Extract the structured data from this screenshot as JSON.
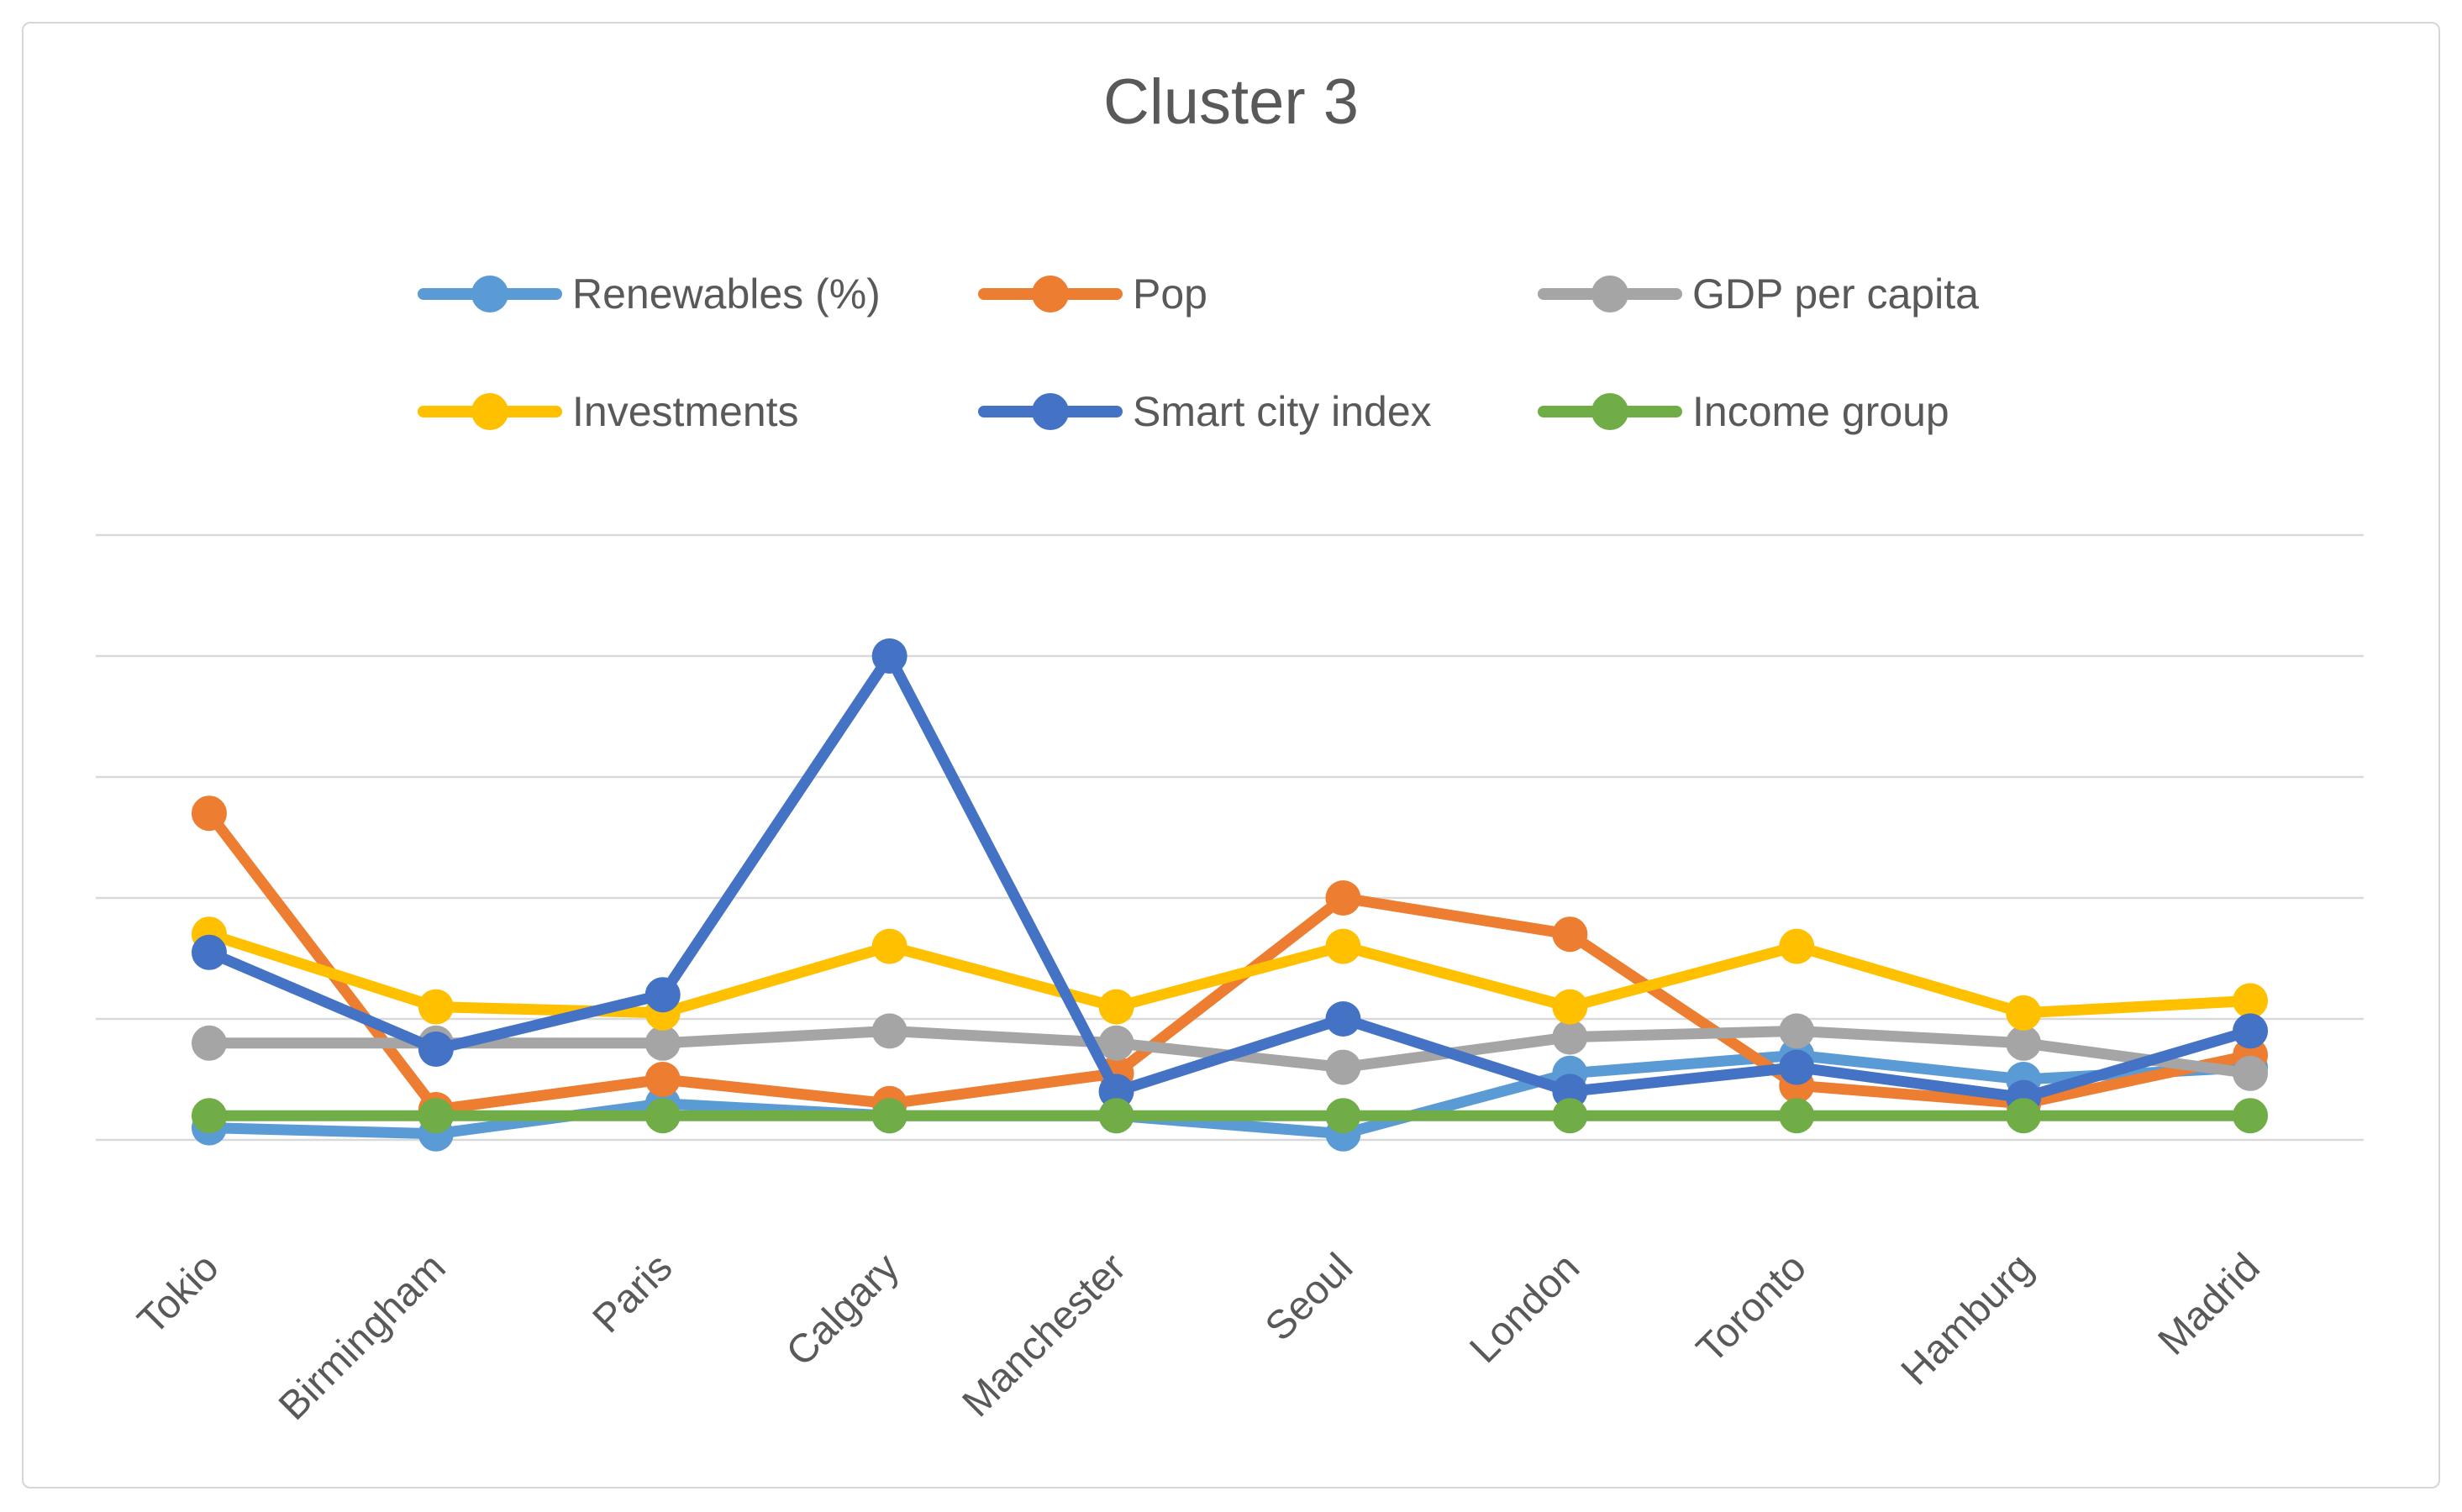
{
  "title": "Cluster 3",
  "chart_data": {
    "type": "line",
    "title": "Cluster 3",
    "categories": [
      "Tokio",
      "Birmingham",
      "Paris",
      "Calgary",
      "Manchester",
      "Seoul",
      "London",
      "Toronto",
      "Hamburg",
      "Madrid"
    ],
    "series": [
      {
        "name": "Renewables (%)",
        "color": "#5B9BD5",
        "values": [
          0.1,
          0.05,
          0.3,
          0.2,
          0.2,
          0.05,
          0.55,
          0.7,
          0.5,
          0.6
        ]
      },
      {
        "name": "Pop",
        "color": "#ED7D31",
        "values": [
          2.7,
          0.25,
          0.5,
          0.3,
          0.55,
          2.0,
          1.7,
          0.45,
          0.3,
          0.7
        ]
      },
      {
        "name": "GDP per capita",
        "color": "#A5A5A5",
        "values": [
          0.8,
          0.8,
          0.8,
          0.9,
          0.8,
          0.6,
          0.85,
          0.9,
          0.8,
          0.55
        ]
      },
      {
        "name": "Investments",
        "color": "#FFC000",
        "values": [
          1.7,
          1.1,
          1.05,
          1.6,
          1.1,
          1.6,
          1.1,
          1.6,
          1.05,
          1.15
        ]
      },
      {
        "name": "Smart city index",
        "color": "#4472C4",
        "values": [
          1.55,
          0.75,
          1.2,
          4.0,
          0.4,
          1.0,
          0.4,
          0.6,
          0.35,
          0.9
        ]
      },
      {
        "name": "Income group",
        "color": "#70AD47",
        "values": [
          0.2,
          0.2,
          0.2,
          0.2,
          0.2,
          0.2,
          0.2,
          0.2,
          0.2,
          0.2
        ]
      }
    ],
    "xlabel": "",
    "ylabel": "",
    "ylim": [
      0,
      5
    ],
    "gridline_step": 1,
    "grid": "horizontal",
    "y_tick_labels_visible": false,
    "legend_position": "top",
    "legend_rows": [
      [
        0,
        1,
        2
      ],
      [
        3,
        4,
        5
      ]
    ],
    "text_color": "#595959",
    "gridline_color": "#d9d9d9"
  }
}
